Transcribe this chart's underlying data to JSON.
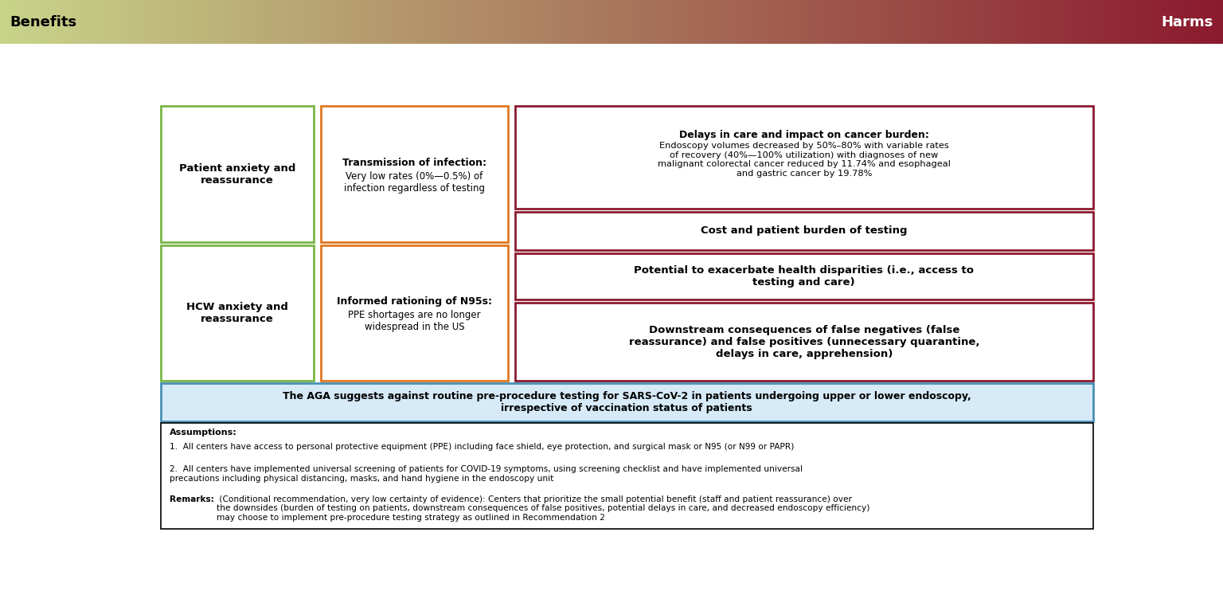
{
  "fig_width": 15.36,
  "fig_height": 7.47,
  "header_gradient_left": "#c8d48a",
  "header_gradient_right": "#8b1a2e",
  "header_text_benefits": "Benefits",
  "header_text_harms": "Harms",
  "green_box1_title": "Patient anxiety and\nreassurance",
  "green_box2_title": "HCW anxiety and\nreassurance",
  "green_border": "#7ab648",
  "orange_box1_title": "Transmission of infection:",
  "orange_box1_body": "Very low rates (0%—0.5%) of\ninfection regardless of testing",
  "orange_box2_title": "Informed rationing of N95s:",
  "orange_box2_body": "PPE shortages are no longer\nwidespread in the US",
  "orange_border": "#e07820",
  "dark_red_box1_title": "Delays in care and impact on cancer burden:",
  "dark_red_box1_body": "Endoscopy volumes decreased by 50%–80% with variable rates\nof recovery (40%—100% utilization) with diagnoses of new\nmalignant colorectal cancer reduced by 11.74% and esophageal\nand gastric cancer by 19.78%",
  "dark_red_box2_text": "Cost and patient burden of testing",
  "dark_red_box3_text": "Potential to exacerbate health disparities (i.e., access to\ntesting and care)",
  "dark_red_box4_text": "Downstream consequences of false negatives (false\nreassurance) and false positives (unnecessary quarantine,\ndelays in care, apprehension)",
  "dark_red_border": "#8b1a2e",
  "recommendation_bg": "#d6eaf8",
  "recommendation_border": "#4a90b8",
  "recommendation_text_bold": "The AGA suggests against routine pre-procedure testing for SARS-CoV-2 in patients undergoing upper or lower endoscopy,\nirrespective of vaccination status of patients",
  "assumptions_title": "Assumptions:",
  "assumptions_text1": "1.  All centers have access to personal protective equipment (PPE) including face shield, eye protection, and surgical mask or N95 (or N99 or PAPR)",
  "assumptions_text2": "2.  All centers have implemented universal screening of patients for COVID-19 symptoms, using screening checklist and have implemented universal\nprecautions including physical distancing, masks, and hand hygiene in the endoscopy unit",
  "remarks_bold": "Remarks:",
  "remarks_text": " (Conditional recommendation, very low certainty of evidence): Centers that prioritize the small potential benefit (staff and patient reassurance) over\nthe downsides (burden of testing on patients, downstream consequences of false positives, potential delays in care, and decreased endoscopy efficiency)\nmay choose to implement pre-procedure testing strategy as outlined in Recommendation 2"
}
